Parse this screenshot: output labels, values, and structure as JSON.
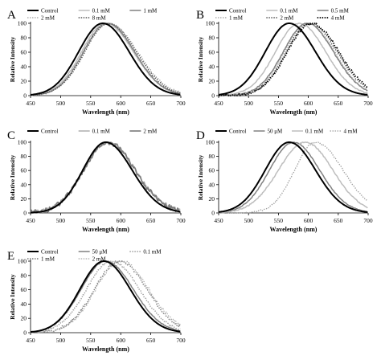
{
  "figure": {
    "panel_positions": [
      "top-left",
      "top-right",
      "middle-left",
      "middle-right",
      "bottom-left"
    ]
  },
  "chart_data": [
    {
      "type": "line",
      "panel_label": "A",
      "xlabel": "Wavelength (nm)",
      "ylabel": "Relative Intensity",
      "xlim": [
        450,
        700
      ],
      "ylim": [
        0,
        100
      ],
      "xticks": [
        450,
        500,
        550,
        600,
        650,
        700
      ],
      "yticks": [
        0,
        20,
        40,
        60,
        80,
        100
      ],
      "grid": false,
      "legend_position": "top",
      "series": [
        {
          "name": "Control",
          "peak": 570,
          "sigma_left": 40,
          "sigma_right": 44,
          "color": "#000000",
          "style": "solid",
          "width": 2.0,
          "noise": 0
        },
        {
          "name": "0.1 mM",
          "peak": 575,
          "sigma_left": 40,
          "sigma_right": 46,
          "color": "#bdbdbd",
          "style": "solid",
          "width": 1.5,
          "noise": 0.8
        },
        {
          "name": "1 mM",
          "peak": 578,
          "sigma_left": 40,
          "sigma_right": 45,
          "color": "#808080",
          "style": "solid",
          "width": 1.5,
          "noise": 0.6
        },
        {
          "name": "2 mM",
          "peak": 580,
          "sigma_left": 41,
          "sigma_right": 48,
          "color": "#9e9e9e",
          "style": "dotted",
          "width": 1.2,
          "noise": 1.2
        },
        {
          "name": "8 mM",
          "peak": 580,
          "sigma_left": 40,
          "sigma_right": 46,
          "color": "#555555",
          "style": "dotted",
          "width": 1.4,
          "noise": 1.0
        }
      ]
    },
    {
      "type": "line",
      "panel_label": "B",
      "xlabel": "Wavelength (nm)",
      "ylabel": "Relative Intensity",
      "xlim": [
        450,
        700
      ],
      "ylim": [
        0,
        100
      ],
      "xticks": [
        450,
        500,
        550,
        600,
        650,
        700
      ],
      "yticks": [
        0,
        20,
        40,
        60,
        80,
        100
      ],
      "grid": false,
      "legend_position": "top",
      "series": [
        {
          "name": "Control",
          "peak": 568,
          "sigma_left": 40,
          "sigma_right": 44,
          "color": "#000000",
          "style": "solid",
          "width": 2.0,
          "noise": 0
        },
        {
          "name": "0.1 mM",
          "peak": 585,
          "sigma_left": 40,
          "sigma_right": 44,
          "color": "#bdbdbd",
          "style": "solid",
          "width": 1.5,
          "noise": 0.6
        },
        {
          "name": "0.5 mM",
          "peak": 598,
          "sigma_left": 40,
          "sigma_right": 44,
          "color": "#808080",
          "style": "solid",
          "width": 1.5,
          "noise": 0.8
        },
        {
          "name": "1 mM",
          "peak": 600,
          "sigma_left": 40,
          "sigma_right": 44,
          "color": "#9e9e9e",
          "style": "dotted",
          "width": 1.2,
          "noise": 1.0
        },
        {
          "name": "2 mM",
          "peak": 603,
          "sigma_left": 40,
          "sigma_right": 45,
          "color": "#555555",
          "style": "dotted",
          "width": 1.4,
          "noise": 1.2
        },
        {
          "name": "4 mM",
          "peak": 605,
          "sigma_left": 40,
          "sigma_right": 46,
          "color": "#000000",
          "style": "dotted",
          "width": 1.8,
          "noise": 1.6
        }
      ]
    },
    {
      "type": "line",
      "panel_label": "C",
      "xlabel": "Wavelength (nm)",
      "ylabel": "Relative Intensity",
      "xlim": [
        450,
        700
      ],
      "ylim": [
        0,
        100
      ],
      "xticks": [
        450,
        500,
        550,
        600,
        650,
        700
      ],
      "yticks": [
        0,
        20,
        40,
        60,
        80,
        100
      ],
      "grid": false,
      "legend_position": "top",
      "series": [
        {
          "name": "Control",
          "peak": 575,
          "sigma_left": 38,
          "sigma_right": 44,
          "color": "#000000",
          "style": "solid",
          "width": 2.0,
          "noise": 0
        },
        {
          "name": "0.1 mM",
          "peak": 578,
          "sigma_left": 40,
          "sigma_right": 46,
          "color": "#a8a8a8",
          "style": "solid",
          "width": 1.4,
          "noise": 3.0
        },
        {
          "name": "2 mM",
          "peak": 578,
          "sigma_left": 40,
          "sigma_right": 46,
          "color": "#7a7a7a",
          "style": "solid",
          "width": 1.6,
          "noise": 3.5
        }
      ]
    },
    {
      "type": "line",
      "panel_label": "D",
      "xlabel": "Wavelength (nm)",
      "ylabel": "Relative Intensity",
      "xlim": [
        450,
        700
      ],
      "ylim": [
        0,
        100
      ],
      "xticks": [
        450,
        500,
        550,
        600,
        650,
        700
      ],
      "yticks": [
        0,
        20,
        40,
        60,
        80,
        100
      ],
      "grid": false,
      "legend_position": "top",
      "series": [
        {
          "name": "Control",
          "peak": 568,
          "sigma_left": 40,
          "sigma_right": 44,
          "color": "#000000",
          "style": "solid",
          "width": 2.0,
          "noise": 0
        },
        {
          "name": "50 μM",
          "peak": 575,
          "sigma_left": 40,
          "sigma_right": 44,
          "color": "#808080",
          "style": "solid",
          "width": 1.5,
          "noise": 0.5
        },
        {
          "name": "0.1 mM",
          "peak": 595,
          "sigma_left": 45,
          "sigma_right": 46,
          "color": "#bdbdbd",
          "style": "solid",
          "width": 1.5,
          "noise": 0.8
        },
        {
          "name": "4 mM",
          "peak": 612,
          "sigma_left": 35,
          "sigma_right": 46,
          "color": "#9e9e9e",
          "style": "dotted",
          "width": 1.3,
          "noise": 1.2
        }
      ]
    },
    {
      "type": "line",
      "panel_label": "E",
      "xlabel": "Wavelength (nm)",
      "ylabel": "Relative Intensity",
      "xlim": [
        450,
        700
      ],
      "ylim": [
        0,
        100
      ],
      "xticks": [
        450,
        500,
        550,
        600,
        650,
        700
      ],
      "yticks": [
        0,
        20,
        40,
        60,
        80,
        100
      ],
      "grid": false,
      "legend_position": "top",
      "series": [
        {
          "name": "Control",
          "peak": 572,
          "sigma_left": 40,
          "sigma_right": 44,
          "color": "#000000",
          "style": "solid",
          "width": 2.0,
          "noise": 0
        },
        {
          "name": "50 μM",
          "peak": 575,
          "sigma_left": 41,
          "sigma_right": 46,
          "color": "#808080",
          "style": "solid",
          "width": 1.5,
          "noise": 0.6
        },
        {
          "name": "0.1 mM",
          "peak": 585,
          "sigma_left": 42,
          "sigma_right": 46,
          "color": "#9e9e9e",
          "style": "dotted",
          "width": 1.4,
          "noise": 1.4
        },
        {
          "name": "1 mM",
          "peak": 598,
          "sigma_left": 42,
          "sigma_right": 46,
          "color": "#777777",
          "style": "dotted",
          "width": 1.4,
          "noise": 2.0
        },
        {
          "name": "2 mM",
          "peak": 600,
          "sigma_left": 42,
          "sigma_right": 47,
          "color": "#aaaaaa",
          "style": "dotted",
          "width": 1.2,
          "noise": 2.2
        }
      ]
    }
  ]
}
